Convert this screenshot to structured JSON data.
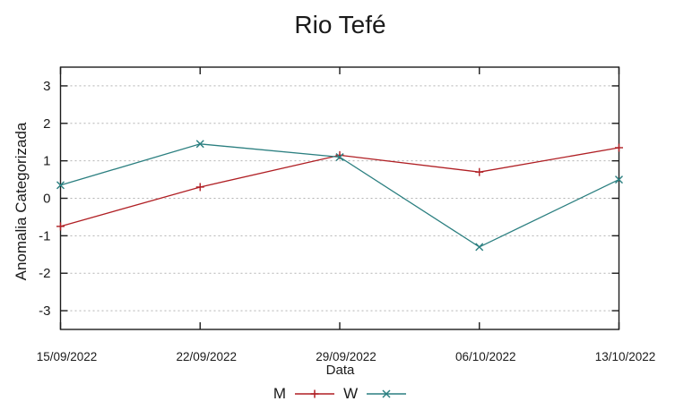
{
  "window": {
    "background": "#ffffff"
  },
  "chart_data": {
    "type": "line",
    "title": "Rio Tefé",
    "xlabel": "Data",
    "ylabel": "Anomalia Categorizada",
    "categories": [
      "15/09/2022",
      "22/09/2022",
      "29/09/2022",
      "06/10/2022",
      "13/10/2022"
    ],
    "series": [
      {
        "name": "M",
        "marker": "plus",
        "color": "#b01f24",
        "values": [
          -0.75,
          0.3,
          1.15,
          0.7,
          1.35
        ]
      },
      {
        "name": "W",
        "marker": "cross",
        "color": "#2b7f80",
        "values": [
          0.35,
          1.45,
          1.1,
          -1.3,
          0.5
        ]
      }
    ],
    "y_ticks": [
      "3",
      "2",
      "1",
      "0",
      "-1",
      "-2",
      "-3"
    ],
    "ylim": [
      -3.5,
      3.5
    ],
    "grid": "horizontal-dotted",
    "legend_position": "bottom-center",
    "axis_color": "#1c1c1c",
    "grid_color": "#b3b3b3",
    "text_color": "#1a1a1a"
  }
}
